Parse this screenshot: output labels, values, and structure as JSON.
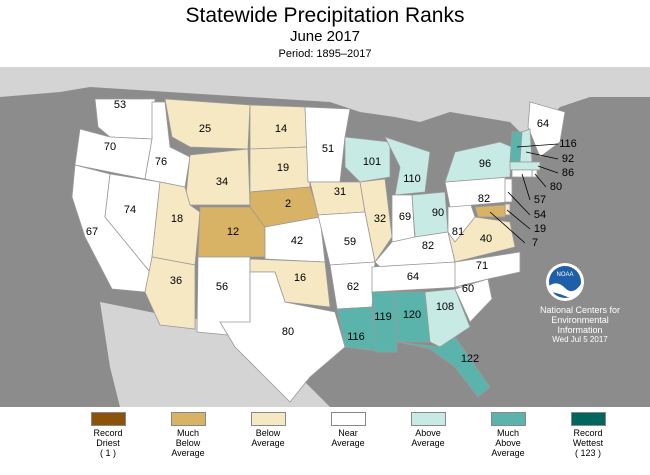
{
  "header": {
    "title": "Statewide Precipitation Ranks",
    "month": "June 2017",
    "period": "Period: 1895–2017"
  },
  "colors": {
    "record_driest": "#8c510a",
    "much_below": "#d8b365",
    "below": "#f6e8c3",
    "near": "#ffffff",
    "above": "#c7eae5",
    "much_above": "#5ab4ac",
    "record_wettest": "#01665e",
    "background": "#8c8c8c",
    "land_outside": "#d4d4d4"
  },
  "states": [
    {
      "name": "WA",
      "rank": "53",
      "cat": "near"
    },
    {
      "name": "OR",
      "rank": "70",
      "cat": "near"
    },
    {
      "name": "CA",
      "rank": "67",
      "cat": "near"
    },
    {
      "name": "NV",
      "rank": "74",
      "cat": "near"
    },
    {
      "name": "ID",
      "rank": "76",
      "cat": "near"
    },
    {
      "name": "MT",
      "rank": "25",
      "cat": "below"
    },
    {
      "name": "WY",
      "rank": "34",
      "cat": "below"
    },
    {
      "name": "UT",
      "rank": "18",
      "cat": "below"
    },
    {
      "name": "AZ",
      "rank": "36",
      "cat": "below"
    },
    {
      "name": "CO",
      "rank": "12",
      "cat": "much_below"
    },
    {
      "name": "NM",
      "rank": "56",
      "cat": "near"
    },
    {
      "name": "ND",
      "rank": "14",
      "cat": "below"
    },
    {
      "name": "SD",
      "rank": "19",
      "cat": "below"
    },
    {
      "name": "NE",
      "rank": "2",
      "cat": "much_below"
    },
    {
      "name": "KS",
      "rank": "42",
      "cat": "near"
    },
    {
      "name": "OK",
      "rank": "16",
      "cat": "below"
    },
    {
      "name": "TX",
      "rank": "80",
      "cat": "near"
    },
    {
      "name": "MN",
      "rank": "51",
      "cat": "near"
    },
    {
      "name": "IA",
      "rank": "31",
      "cat": "below"
    },
    {
      "name": "MO",
      "rank": "59",
      "cat": "near"
    },
    {
      "name": "AR",
      "rank": "62",
      "cat": "near"
    },
    {
      "name": "LA",
      "rank": "116",
      "cat": "much_above"
    },
    {
      "name": "WI",
      "rank": "101",
      "cat": "above"
    },
    {
      "name": "IL",
      "rank": "32",
      "cat": "below"
    },
    {
      "name": "MI",
      "rank": "110",
      "cat": "above"
    },
    {
      "name": "IN",
      "rank": "69",
      "cat": "near"
    },
    {
      "name": "OH",
      "rank": "90",
      "cat": "above"
    },
    {
      "name": "KY",
      "rank": "82",
      "cat": "near"
    },
    {
      "name": "TN",
      "rank": "64",
      "cat": "near"
    },
    {
      "name": "MS",
      "rank": "119",
      "cat": "much_above"
    },
    {
      "name": "AL",
      "rank": "120",
      "cat": "much_above"
    },
    {
      "name": "GA",
      "rank": "108",
      "cat": "above"
    },
    {
      "name": "FL",
      "rank": "122",
      "cat": "much_above"
    },
    {
      "name": "SC",
      "rank": "60",
      "cat": "near"
    },
    {
      "name": "NC",
      "rank": "71",
      "cat": "near"
    },
    {
      "name": "VA",
      "rank": "40",
      "cat": "below"
    },
    {
      "name": "WV",
      "rank": "81",
      "cat": "near"
    },
    {
      "name": "PA",
      "rank": "82",
      "cat": "near"
    },
    {
      "name": "NY",
      "rank": "96",
      "cat": "above"
    },
    {
      "name": "ME",
      "rank": "64",
      "cat": "near"
    }
  ],
  "callouts": [
    {
      "name": "VT",
      "rank": "116",
      "cat": "much_above"
    },
    {
      "name": "NH",
      "rank": "92",
      "cat": "above"
    },
    {
      "name": "MA",
      "rank": "86",
      "cat": "above"
    },
    {
      "name": "RI",
      "rank": "80",
      "cat": "near"
    },
    {
      "name": "CT",
      "rank": "57",
      "cat": "near"
    },
    {
      "name": "NJ",
      "rank": "54",
      "cat": "near"
    },
    {
      "name": "DE",
      "rank": "19",
      "cat": "below"
    },
    {
      "name": "MD",
      "rank": "7",
      "cat": "much_below"
    }
  ],
  "legend": [
    {
      "key": "record_driest",
      "line1": "Record",
      "line2": "Driest",
      "line3": "( 1 )"
    },
    {
      "key": "much_below",
      "line1": "Much",
      "line2": "Below",
      "line3": "Average"
    },
    {
      "key": "below",
      "line1": "Below",
      "line2": "Average",
      "line3": ""
    },
    {
      "key": "near",
      "line1": "Near",
      "line2": "Average",
      "line3": ""
    },
    {
      "key": "above",
      "line1": "Above",
      "line2": "Average",
      "line3": ""
    },
    {
      "key": "much_above",
      "line1": "Much",
      "line2": "Above",
      "line3": "Average"
    },
    {
      "key": "record_wettest",
      "line1": "Record",
      "line2": "Wettest",
      "line3": "( 123 )"
    }
  ],
  "credit": {
    "logo_text": "NOAA",
    "line1": "National Centers for",
    "line2": "Environmental",
    "line3": "Information",
    "line4": "Wed Jul  5 2017"
  }
}
